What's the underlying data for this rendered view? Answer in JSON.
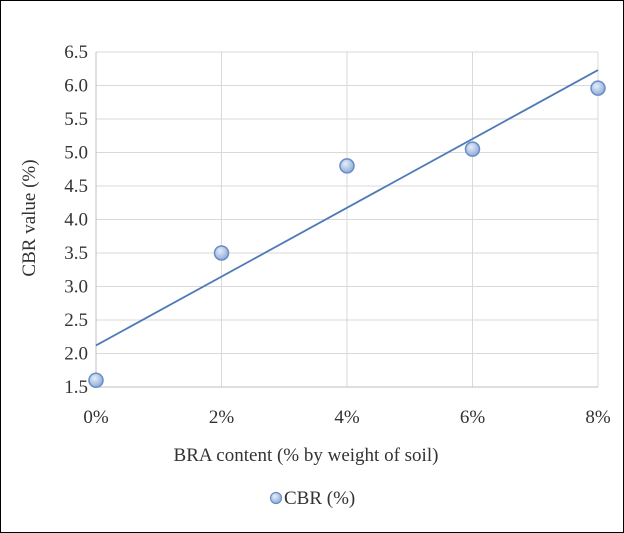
{
  "chart_data": {
    "type": "scatter",
    "xlabel": "BRA content (% by weight of soil)",
    "ylabel": "CBR value (%)",
    "x_tick_labels": [
      "0%",
      "2%",
      "4%",
      "6%",
      "8%"
    ],
    "x_ticks": [
      0,
      2,
      4,
      6,
      8
    ],
    "y_tick_labels": [
      "1.5",
      "2.0",
      "2.5",
      "3.0",
      "3.5",
      "4.0",
      "4.5",
      "5.0",
      "5.5",
      "6.0",
      "6.5"
    ],
    "y_ticks": [
      1.5,
      2.0,
      2.5,
      3.0,
      3.5,
      4.0,
      4.5,
      5.0,
      5.5,
      6.0,
      6.5
    ],
    "xlim": [
      0,
      8
    ],
    "ylim": [
      1.5,
      6.5
    ],
    "grid": true,
    "legend_position": "bottom",
    "series": [
      {
        "name": "CBR (%)",
        "x": [
          0,
          2,
          4,
          6,
          8
        ],
        "y": [
          1.6,
          3.5,
          4.8,
          5.05,
          5.96
        ],
        "marker_color": "#9db8e0",
        "marker_edge_color": "#6a8cc4"
      }
    ],
    "trendline": {
      "type": "linear",
      "x": [
        0,
        8
      ],
      "y": [
        2.12,
        6.23
      ],
      "color": "#4f7ab8"
    },
    "grid_color": "#d9d9d9"
  }
}
